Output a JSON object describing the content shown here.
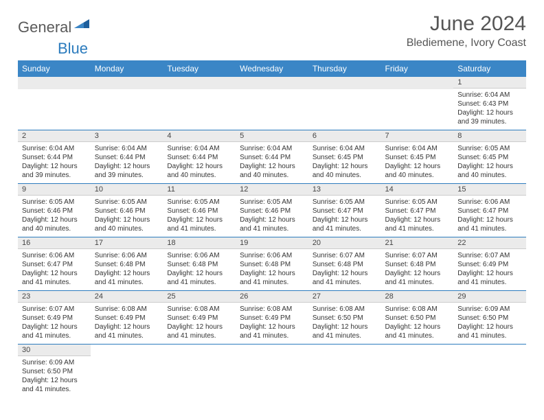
{
  "logo": {
    "general": "General",
    "blue": "Blue"
  },
  "title": "June 2024",
  "location": "Blediemene, Ivory Coast",
  "colors": {
    "header_bg": "#3b86c6",
    "header_text": "#ffffff",
    "daynum_bg": "#ebebeb",
    "week_divider": "#2b7bbd",
    "body_text": "#333333",
    "title_text": "#555555",
    "logo_gray": "#5a5a5a",
    "logo_blue": "#2b7bbd"
  },
  "typography": {
    "title_fontsize": 30,
    "location_fontsize": 16,
    "header_fontsize": 12,
    "daynum_fontsize": 11,
    "cell_fontsize": 10
  },
  "day_headers": [
    "Sunday",
    "Monday",
    "Tuesday",
    "Wednesday",
    "Thursday",
    "Friday",
    "Saturday"
  ],
  "weeks": [
    [
      null,
      null,
      null,
      null,
      null,
      null,
      {
        "n": "1",
        "sr": "Sunrise: 6:04 AM",
        "ss": "Sunset: 6:43 PM",
        "dl": "Daylight: 12 hours and 39 minutes."
      }
    ],
    [
      {
        "n": "2",
        "sr": "Sunrise: 6:04 AM",
        "ss": "Sunset: 6:44 PM",
        "dl": "Daylight: 12 hours and 39 minutes."
      },
      {
        "n": "3",
        "sr": "Sunrise: 6:04 AM",
        "ss": "Sunset: 6:44 PM",
        "dl": "Daylight: 12 hours and 39 minutes."
      },
      {
        "n": "4",
        "sr": "Sunrise: 6:04 AM",
        "ss": "Sunset: 6:44 PM",
        "dl": "Daylight: 12 hours and 40 minutes."
      },
      {
        "n": "5",
        "sr": "Sunrise: 6:04 AM",
        "ss": "Sunset: 6:44 PM",
        "dl": "Daylight: 12 hours and 40 minutes."
      },
      {
        "n": "6",
        "sr": "Sunrise: 6:04 AM",
        "ss": "Sunset: 6:45 PM",
        "dl": "Daylight: 12 hours and 40 minutes."
      },
      {
        "n": "7",
        "sr": "Sunrise: 6:04 AM",
        "ss": "Sunset: 6:45 PM",
        "dl": "Daylight: 12 hours and 40 minutes."
      },
      {
        "n": "8",
        "sr": "Sunrise: 6:05 AM",
        "ss": "Sunset: 6:45 PM",
        "dl": "Daylight: 12 hours and 40 minutes."
      }
    ],
    [
      {
        "n": "9",
        "sr": "Sunrise: 6:05 AM",
        "ss": "Sunset: 6:46 PM",
        "dl": "Daylight: 12 hours and 40 minutes."
      },
      {
        "n": "10",
        "sr": "Sunrise: 6:05 AM",
        "ss": "Sunset: 6:46 PM",
        "dl": "Daylight: 12 hours and 40 minutes."
      },
      {
        "n": "11",
        "sr": "Sunrise: 6:05 AM",
        "ss": "Sunset: 6:46 PM",
        "dl": "Daylight: 12 hours and 41 minutes."
      },
      {
        "n": "12",
        "sr": "Sunrise: 6:05 AM",
        "ss": "Sunset: 6:46 PM",
        "dl": "Daylight: 12 hours and 41 minutes."
      },
      {
        "n": "13",
        "sr": "Sunrise: 6:05 AM",
        "ss": "Sunset: 6:47 PM",
        "dl": "Daylight: 12 hours and 41 minutes."
      },
      {
        "n": "14",
        "sr": "Sunrise: 6:05 AM",
        "ss": "Sunset: 6:47 PM",
        "dl": "Daylight: 12 hours and 41 minutes."
      },
      {
        "n": "15",
        "sr": "Sunrise: 6:06 AM",
        "ss": "Sunset: 6:47 PM",
        "dl": "Daylight: 12 hours and 41 minutes."
      }
    ],
    [
      {
        "n": "16",
        "sr": "Sunrise: 6:06 AM",
        "ss": "Sunset: 6:47 PM",
        "dl": "Daylight: 12 hours and 41 minutes."
      },
      {
        "n": "17",
        "sr": "Sunrise: 6:06 AM",
        "ss": "Sunset: 6:48 PM",
        "dl": "Daylight: 12 hours and 41 minutes."
      },
      {
        "n": "18",
        "sr": "Sunrise: 6:06 AM",
        "ss": "Sunset: 6:48 PM",
        "dl": "Daylight: 12 hours and 41 minutes."
      },
      {
        "n": "19",
        "sr": "Sunrise: 6:06 AM",
        "ss": "Sunset: 6:48 PM",
        "dl": "Daylight: 12 hours and 41 minutes."
      },
      {
        "n": "20",
        "sr": "Sunrise: 6:07 AM",
        "ss": "Sunset: 6:48 PM",
        "dl": "Daylight: 12 hours and 41 minutes."
      },
      {
        "n": "21",
        "sr": "Sunrise: 6:07 AM",
        "ss": "Sunset: 6:48 PM",
        "dl": "Daylight: 12 hours and 41 minutes."
      },
      {
        "n": "22",
        "sr": "Sunrise: 6:07 AM",
        "ss": "Sunset: 6:49 PM",
        "dl": "Daylight: 12 hours and 41 minutes."
      }
    ],
    [
      {
        "n": "23",
        "sr": "Sunrise: 6:07 AM",
        "ss": "Sunset: 6:49 PM",
        "dl": "Daylight: 12 hours and 41 minutes."
      },
      {
        "n": "24",
        "sr": "Sunrise: 6:08 AM",
        "ss": "Sunset: 6:49 PM",
        "dl": "Daylight: 12 hours and 41 minutes."
      },
      {
        "n": "25",
        "sr": "Sunrise: 6:08 AM",
        "ss": "Sunset: 6:49 PM",
        "dl": "Daylight: 12 hours and 41 minutes."
      },
      {
        "n": "26",
        "sr": "Sunrise: 6:08 AM",
        "ss": "Sunset: 6:49 PM",
        "dl": "Daylight: 12 hours and 41 minutes."
      },
      {
        "n": "27",
        "sr": "Sunrise: 6:08 AM",
        "ss": "Sunset: 6:50 PM",
        "dl": "Daylight: 12 hours and 41 minutes."
      },
      {
        "n": "28",
        "sr": "Sunrise: 6:08 AM",
        "ss": "Sunset: 6:50 PM",
        "dl": "Daylight: 12 hours and 41 minutes."
      },
      {
        "n": "29",
        "sr": "Sunrise: 6:09 AM",
        "ss": "Sunset: 6:50 PM",
        "dl": "Daylight: 12 hours and 41 minutes."
      }
    ],
    [
      {
        "n": "30",
        "sr": "Sunrise: 6:09 AM",
        "ss": "Sunset: 6:50 PM",
        "dl": "Daylight: 12 hours and 41 minutes."
      },
      null,
      null,
      null,
      null,
      null,
      null
    ]
  ]
}
